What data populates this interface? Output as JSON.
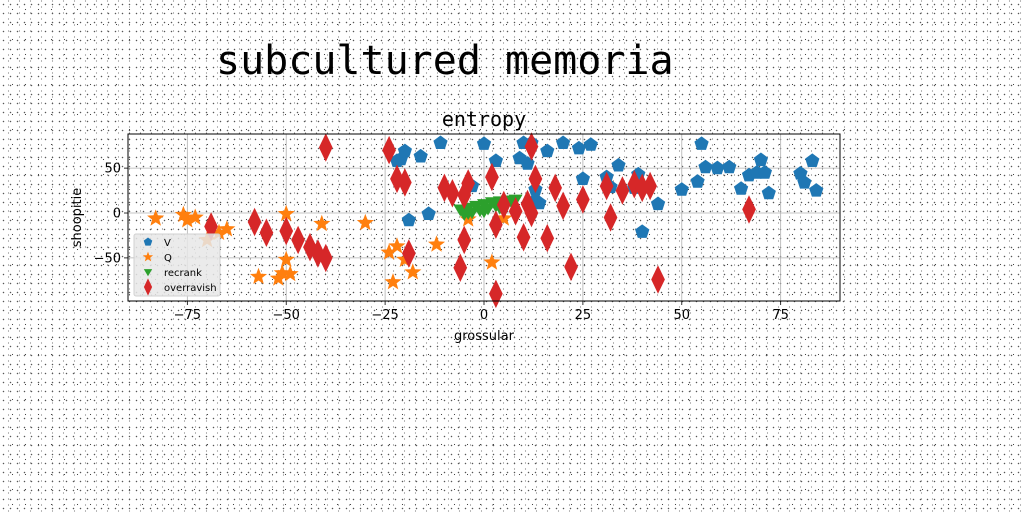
{
  "page": {
    "suptitle": "subcultured memoria"
  },
  "chart_data": {
    "type": "scatter",
    "title": "entropy",
    "xlabel": "grossular",
    "ylabel": "shoopitie",
    "xlim": [
      -90,
      90
    ],
    "ylim": [
      -98,
      88
    ],
    "xticks": [
      -75,
      -50,
      -25,
      0,
      25,
      50,
      75
    ],
    "xtick_labels": [
      "−75",
      "−50",
      "−25",
      "0",
      "25",
      "50",
      "75"
    ],
    "yticks": [
      -50,
      0,
      50
    ],
    "ytick_labels": [
      "−50",
      "0",
      "50"
    ],
    "grid": true,
    "legend_position": "lower-left",
    "series": [
      {
        "name": "V",
        "marker": "pentagon",
        "color": "#1f77b4",
        "x": [
          -21,
          -22,
          -20,
          -16,
          -11,
          -3,
          0,
          3,
          12,
          9,
          11,
          13,
          20,
          14,
          16,
          24,
          27,
          31,
          34,
          38,
          39,
          40,
          44,
          50,
          54,
          55,
          56,
          59,
          62,
          65,
          67,
          69,
          70,
          71,
          72,
          80,
          81,
          83,
          84,
          -19,
          -14,
          10,
          13,
          25,
          32
        ],
        "y": [
          60,
          58,
          69,
          63,
          78,
          30,
          77,
          58,
          78,
          61,
          55,
          26,
          78,
          11,
          69,
          72,
          76,
          40,
          53,
          28,
          43,
          -21,
          10,
          26,
          35,
          77,
          51,
          50,
          51,
          27,
          42,
          45,
          59,
          45,
          22,
          44,
          34,
          58,
          25,
          -8,
          -1,
          78,
          14,
          38,
          29
        ]
      },
      {
        "name": "Q",
        "marker": "star",
        "color": "#ff7f0e",
        "x": [
          -83,
          -76,
          -75,
          -73,
          -70,
          -67,
          -65,
          -57,
          -52,
          -51,
          -50,
          -49,
          -50,
          -41,
          -30,
          -24,
          -23,
          -22,
          -20,
          -18,
          -12,
          -4,
          2,
          5
        ],
        "y": [
          -6,
          -2,
          -8,
          -5,
          -30,
          -22,
          -18,
          -71,
          -73,
          -67,
          -1,
          -68,
          -52,
          -12,
          -11,
          -44,
          -77,
          -37,
          -52,
          -66,
          -35,
          -7,
          -55,
          -6
        ]
      },
      {
        "name": "recrank",
        "marker": "triangle-down",
        "color": "#2ca02c",
        "x": [
          -6,
          -4,
          -2,
          0,
          2,
          4,
          6,
          -5,
          -3,
          -1,
          1,
          3,
          5,
          7,
          8,
          -4,
          0,
          4
        ],
        "y": [
          4,
          6,
          8,
          10,
          12,
          13,
          14,
          -1,
          1,
          3,
          5,
          8,
          10,
          12,
          15,
          0,
          2,
          6
        ]
      },
      {
        "name": "overravish",
        "marker": "thin-diamond",
        "color": "#d62728",
        "x": [
          -40,
          -24,
          -22,
          -20,
          -10,
          -8,
          -4,
          -5,
          2,
          8,
          10,
          12,
          12,
          13,
          18,
          20,
          25,
          31,
          32,
          35,
          38,
          40,
          42,
          -69,
          -58,
          -55,
          -50,
          -47,
          -44,
          -42,
          -40,
          -19,
          -5,
          3,
          5,
          11,
          16,
          22,
          44,
          67,
          -6,
          3
        ],
        "y": [
          73,
          70,
          38,
          34,
          28,
          22,
          33,
          20,
          40,
          2,
          -27,
          0,
          74,
          38,
          28,
          8,
          15,
          30,
          -5,
          25,
          32,
          28,
          30,
          -15,
          -10,
          -22,
          -20,
          -30,
          -38,
          -45,
          -50,
          -45,
          -30,
          -13,
          9,
          10,
          -28,
          -60,
          -74,
          4,
          -61,
          -90
        ]
      }
    ]
  }
}
